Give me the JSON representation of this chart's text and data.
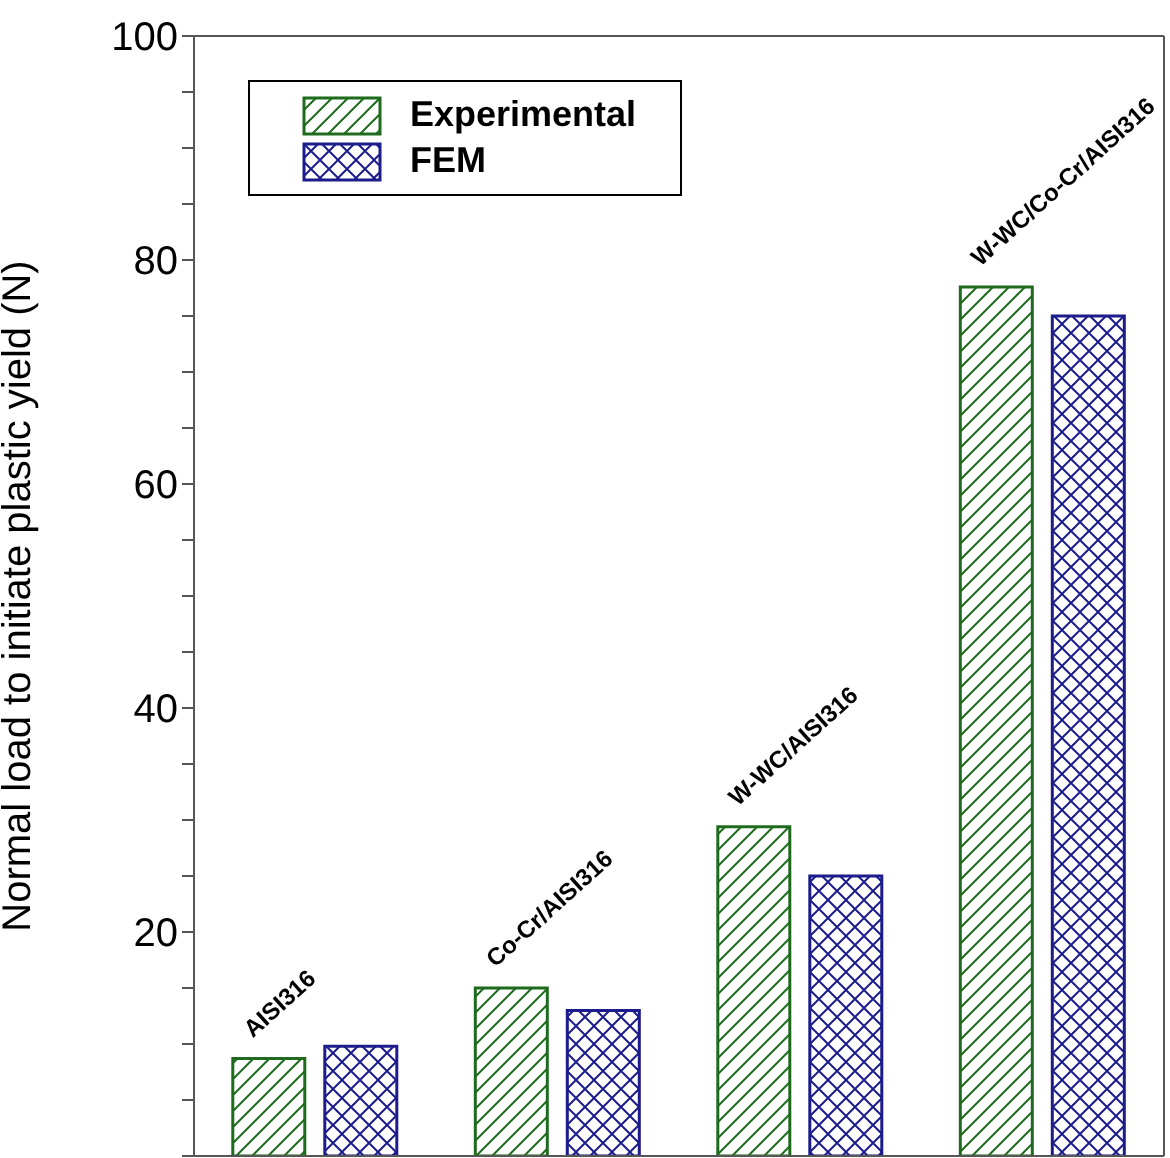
{
  "chart_data": {
    "type": "bar",
    "ylabel": "Normal load to initiate plastic yield (N)",
    "categories": [
      "AISI316",
      "Co-Cr/AISI316",
      "W-WC/AISI316",
      "W-WC/Co-Cr/AISI316"
    ],
    "series": [
      {
        "name": "Experimental",
        "color": "#1e6b1e",
        "values": [
          8.7,
          15,
          29.4,
          77.6
        ]
      },
      {
        "name": "FEM",
        "color": "#1c1c8c",
        "values": [
          9.8,
          13,
          25,
          75
        ]
      }
    ],
    "ylim": [
      0,
      100
    ],
    "yticks": [
      {
        "value": 0,
        "label": null
      },
      {
        "value": 5,
        "label": null
      },
      {
        "value": 10,
        "label": null
      },
      {
        "value": 15,
        "label": null
      },
      20,
      {
        "value": 25,
        "label": null
      },
      {
        "value": 30,
        "label": null
      },
      {
        "value": 35,
        "label": null
      },
      40,
      {
        "value": 45,
        "label": null
      },
      {
        "value": 50,
        "label": null
      },
      {
        "value": 55,
        "label": null
      },
      60,
      {
        "value": 65,
        "label": null
      },
      {
        "value": 70,
        "label": null
      },
      {
        "value": 75,
        "label": null
      },
      80,
      {
        "value": 85,
        "label": null
      },
      {
        "value": 90,
        "label": null
      },
      {
        "value": 95,
        "label": null
      },
      100
    ],
    "grid": false,
    "legend": "top left"
  }
}
